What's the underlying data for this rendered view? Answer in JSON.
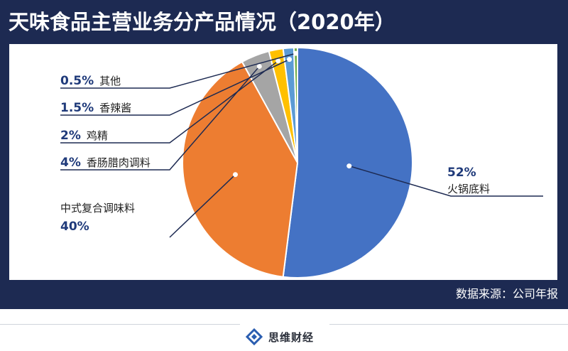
{
  "title": "天味食品主营业务分产品情况（2020年）",
  "source": "数据来源：公司年报",
  "brand": "思维财经",
  "chart_data": {
    "type": "pie",
    "title": "天味食品主营业务分产品情况（2020年）",
    "slices": [
      {
        "name": "火锅底料",
        "pct_label": "52%",
        "value": 52,
        "color": "#4472c4"
      },
      {
        "name": "中式复合调味料",
        "pct_label": "40%",
        "value": 40,
        "color": "#ed7d31"
      },
      {
        "name": "香肠腊肉调料",
        "pct_label": "4%",
        "value": 4,
        "color": "#a5a5a5"
      },
      {
        "name": "鸡精",
        "pct_label": "2%",
        "value": 2,
        "color": "#ffc000"
      },
      {
        "name": "香辣酱",
        "pct_label": "1.5%",
        "value": 1.5,
        "color": "#5b9bd5"
      },
      {
        "name": "其他",
        "pct_label": "0.5%",
        "value": 0.5,
        "color": "#70ad47"
      }
    ]
  }
}
